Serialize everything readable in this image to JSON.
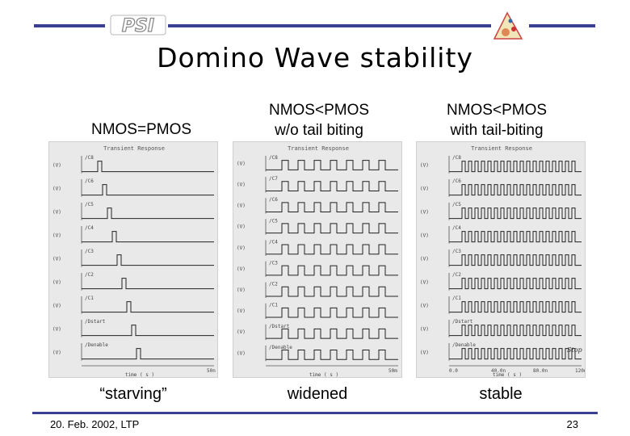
{
  "header": {
    "logo_text": "PSI",
    "emblem_icon": "institute-emblem-icon"
  },
  "slide": {
    "title": "Domino Wave stability",
    "columns": [
      {
        "head_line1": "NMOS=PMOS",
        "head_line2": "",
        "caption": "“starving”"
      },
      {
        "head_line1": "NMOS<PMOS",
        "head_line2": "w/o tail biting",
        "caption": "widened"
      },
      {
        "head_line1": "NMOS<PMOS",
        "head_line2": "with tail-biting",
        "caption": "stable"
      }
    ]
  },
  "plots": {
    "panel_title": "Transient Response",
    "time_label": "time ( s )",
    "signals": [
      "/C8",
      "/C6",
      "/C5",
      "/C4",
      "/C3",
      "/C2",
      "/C1",
      "/Dstart",
      "/Denable"
    ],
    "signals_mid": [
      "/C8",
      "/C7",
      "/C6",
      "/C5",
      "/C4",
      "/C3",
      "/C2",
      "/C1",
      "/Dstart",
      "/Denable"
    ],
    "signals_right": [
      "/C8",
      "/C6",
      "/C5",
      "/C4",
      "/C3",
      "/C2",
      "/C1",
      "/Dstart",
      "/Denable"
    ],
    "left_xend": "50n",
    "mid_xend": "50m",
    "right_xticks": [
      "0.0",
      "40.0n",
      "80.0n",
      "120n"
    ],
    "stop_label": "Stop"
  },
  "footer": {
    "date": "20. Feb. 2002, LTP",
    "page": "23"
  }
}
